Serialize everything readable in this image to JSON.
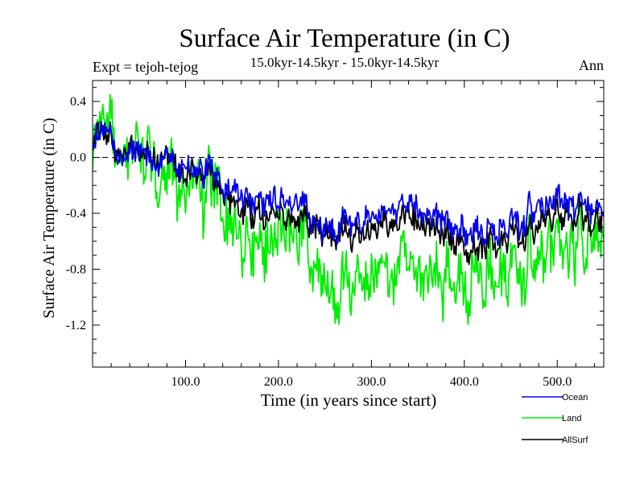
{
  "chart_data": {
    "type": "line",
    "title": "Surface Air Temperature (in C)",
    "subtitle": "15.0kyr-14.5kyr - 15.0kyr-14.5kyr",
    "experiment_label": "Expt = tejoh-tejog",
    "period_label": "Ann",
    "xlabel": "Time (in years since start)",
    "ylabel": "Surface Air Temperature (in C)",
    "xlim": [
      0,
      550
    ],
    "ylim": [
      -1.5,
      0.55
    ],
    "x_ticks": [
      100,
      200,
      300,
      400,
      500
    ],
    "x_tick_labels": [
      "100.0",
      "200.0",
      "300.0",
      "400.0",
      "500.0"
    ],
    "y_ticks": [
      0.4,
      0.0,
      -0.4,
      -0.8,
      -1.2
    ],
    "y_tick_labels": [
      "0.4",
      "0.0",
      "-0.4",
      "-0.8",
      "-1.2"
    ],
    "reference_line": {
      "y": 0.0,
      "style": "dashed"
    },
    "legend_position": "bottom-right",
    "series": [
      {
        "name": "Land",
        "color": "#00ee00",
        "anchors_x": [
          0,
          10,
          25,
          50,
          75,
          100,
          125,
          150,
          175,
          200,
          215,
          250,
          300,
          350,
          400,
          450,
          500,
          550
        ],
        "anchors_y": [
          0.15,
          0.25,
          0.05,
          0.0,
          -0.2,
          -0.25,
          -0.25,
          -0.45,
          -0.5,
          -0.55,
          -0.55,
          -0.9,
          -0.85,
          -0.8,
          -0.9,
          -0.85,
          -0.6,
          -0.75
        ],
        "noise_amplitude": 0.28
      },
      {
        "name": "Ocean",
        "color": "#0000ee",
        "anchors_x": [
          0,
          10,
          25,
          50,
          75,
          100,
          125,
          140,
          175,
          200,
          215,
          250,
          300,
          350,
          400,
          450,
          500,
          550
        ],
        "anchors_y": [
          0.15,
          0.2,
          0.05,
          0.0,
          -0.05,
          -0.1,
          -0.1,
          -0.25,
          -0.25,
          -0.3,
          -0.35,
          -0.5,
          -0.4,
          -0.35,
          -0.55,
          -0.5,
          -0.3,
          -0.45
        ],
        "noise_amplitude": 0.12
      },
      {
        "name": "AllSurf",
        "color": "#000000",
        "anchors_x": [
          0,
          10,
          25,
          50,
          75,
          100,
          125,
          140,
          175,
          200,
          215,
          250,
          300,
          350,
          400,
          450,
          500,
          550
        ],
        "anchors_y": [
          0.15,
          0.2,
          0.05,
          0.0,
          -0.05,
          -0.1,
          -0.15,
          -0.3,
          -0.35,
          -0.4,
          -0.45,
          -0.55,
          -0.5,
          -0.45,
          -0.65,
          -0.6,
          -0.4,
          -0.55
        ],
        "noise_amplitude": 0.12
      }
    ]
  }
}
